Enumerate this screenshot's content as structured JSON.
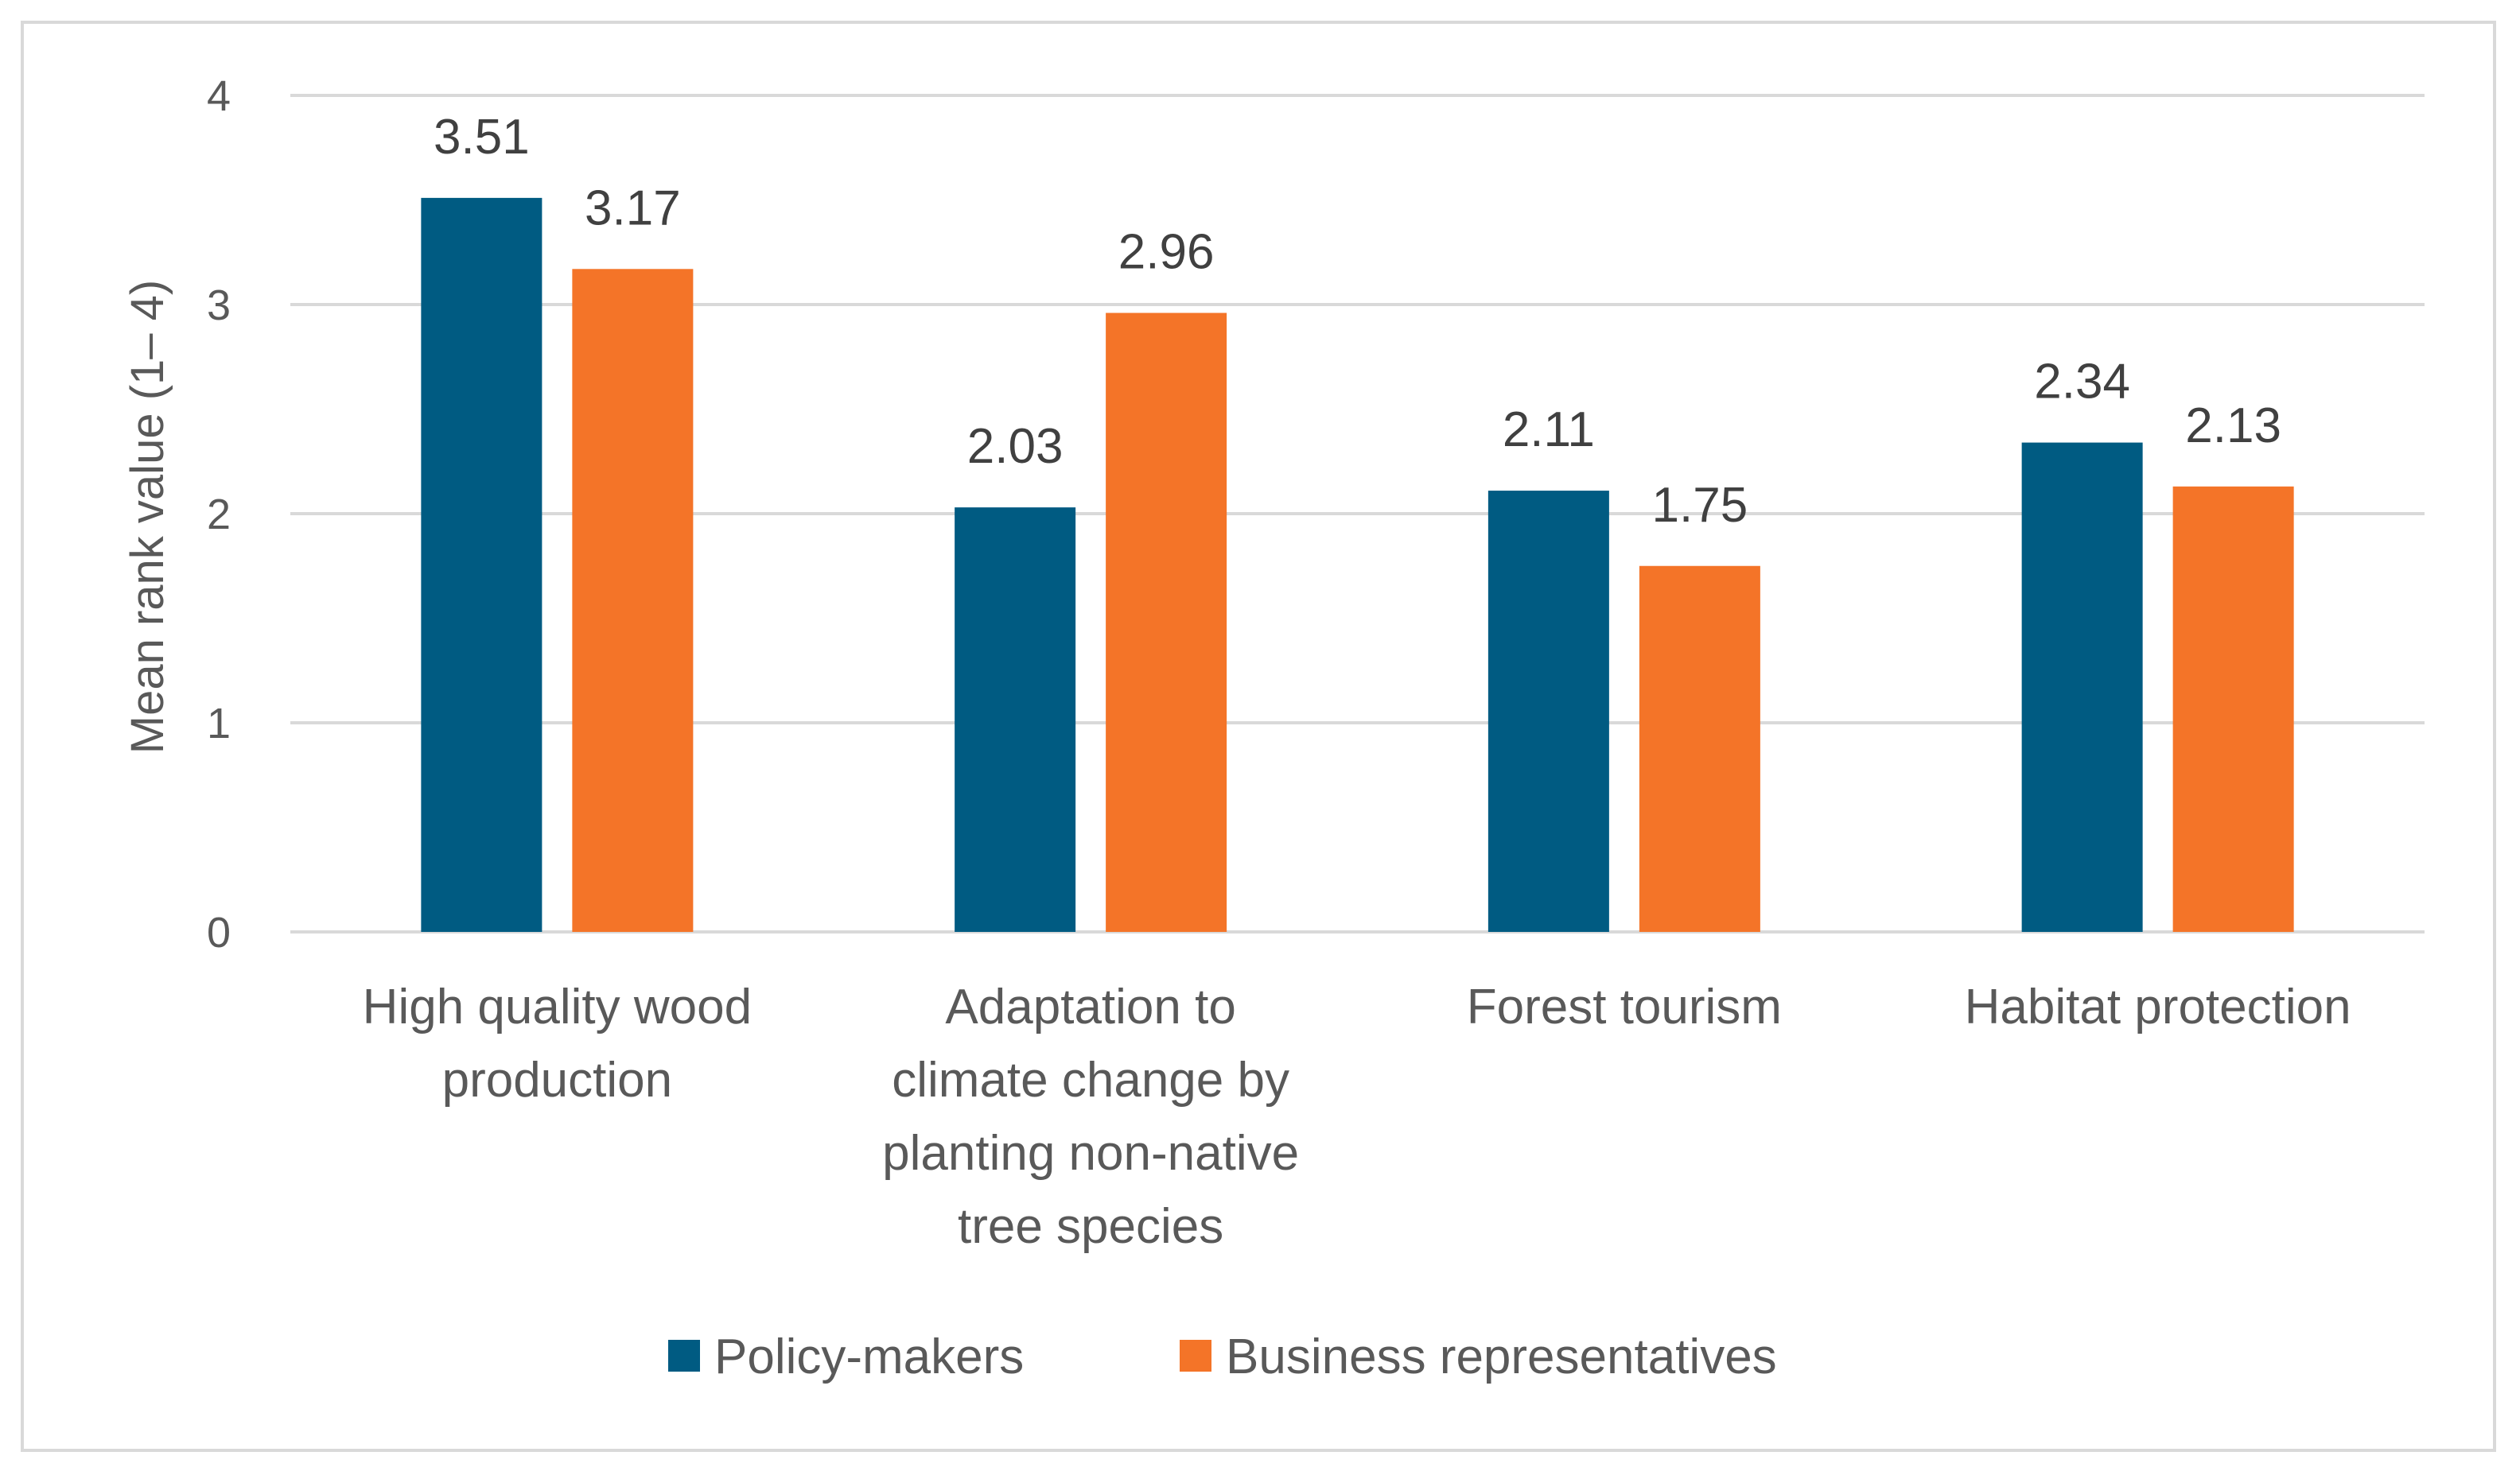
{
  "chart_data": {
    "type": "bar",
    "title": "",
    "xlabel": "",
    "ylabel": "Mean rank value (1– 4)",
    "ylim": [
      0,
      4
    ],
    "yticks": [
      0,
      1,
      2,
      3,
      4
    ],
    "grid": true,
    "legend_position": "bottom",
    "categories": [
      [
        "High quality wood",
        "production"
      ],
      [
        "Adaptation to",
        "climate change by",
        "planting non-native",
        "tree species"
      ],
      [
        "Forest tourism"
      ],
      [
        "Habitat protection"
      ]
    ],
    "series": [
      {
        "name": "Policy-makers",
        "color": "#005b82",
        "values": [
          3.51,
          2.03,
          2.11,
          2.34
        ]
      },
      {
        "name": "Business representatives",
        "color": "#f47428",
        "values": [
          3.17,
          2.96,
          1.75,
          2.13
        ]
      }
    ]
  }
}
